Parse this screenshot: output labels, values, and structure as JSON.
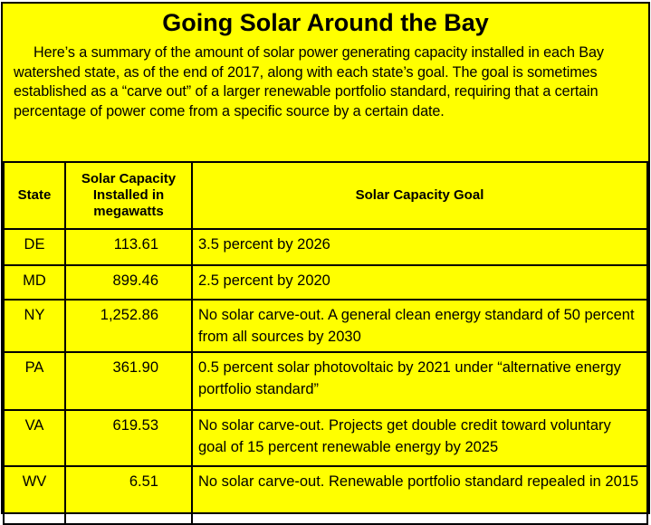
{
  "header": {
    "title": "Going Solar Around the Bay",
    "intro": "Here’s a summary of the amount of solar power generating capacity installed in each Bay watershed state, as of the end of 2017, along with each state’s goal. The goal is sometimes established as a “carve out” of a larger renewable portfolio standard, requiring that a certain percentage of power come from a specific source by a certain date."
  },
  "table": {
    "columns": [
      "State",
      "Solar Capacity Installed in megawatts",
      "Solar Capacity Goal"
    ],
    "rows": [
      [
        "DE",
        "113.61",
        "3.5 percent by 2026"
      ],
      [
        "MD",
        "899.46",
        "2.5 percent by 2020"
      ],
      [
        "NY",
        "1,252.86",
        "No solar carve-out. A general clean energy standard of 50 percent from all sources by 2030"
      ],
      [
        "PA",
        "361.90",
        "0.5 percent solar photovoltaic by 2021 under “alternative energy portfolio standard”"
      ],
      [
        "VA",
        "619.53",
        "No solar carve-out. Projects get double credit toward voluntary goal of 15 percent renewable energy by 2025"
      ],
      [
        "WV",
        "6.51",
        "No solar carve-out. Renewable portfolio standard repealed in 2015"
      ]
    ]
  }
}
